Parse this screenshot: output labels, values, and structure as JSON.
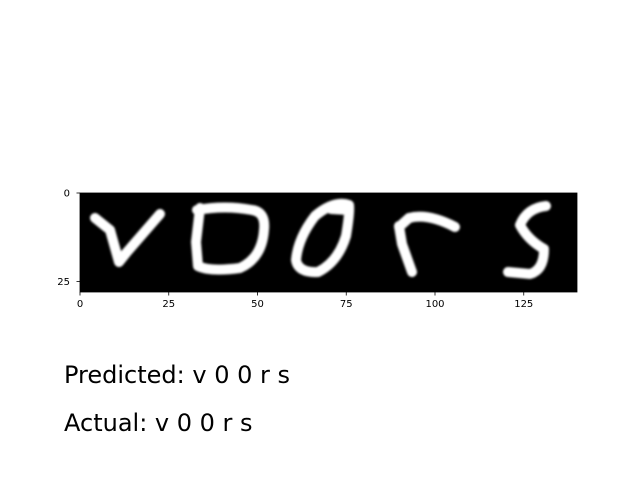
{
  "chart_data": {
    "type": "image",
    "xlim": [
      0,
      140
    ],
    "ylim": [
      28,
      0
    ],
    "x_ticks": [
      0,
      25,
      50,
      75,
      100,
      125
    ],
    "y_ticks": [
      0,
      25
    ],
    "characters": [
      "v",
      "0",
      "0",
      "r",
      "s"
    ],
    "colormap": "gray",
    "background_color": "#000000",
    "stroke_color": "#ffffff"
  },
  "predicted": {
    "label": "Predicted:",
    "text": "v 0 0 r s"
  },
  "actual": {
    "label": "Actual:",
    "text": "v 0 0 r s"
  }
}
